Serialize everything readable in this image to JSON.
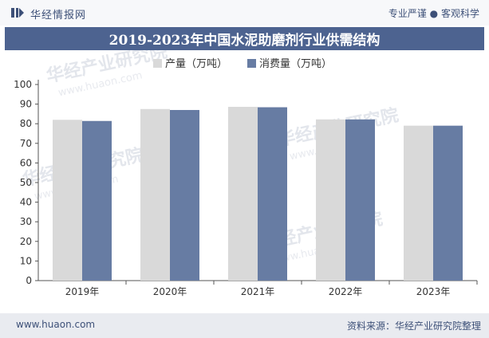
{
  "header": {
    "brand": "华经情报网",
    "tagline_left": "专业严谨",
    "tagline_sep": "●",
    "tagline_right": "客观科学"
  },
  "footer": {
    "site": "www.huaon.com",
    "source": "资料来源：华经产业研究院整理"
  },
  "watermark": {
    "text": "华经产业研究院",
    "url": "www.huaon.com"
  },
  "colors": {
    "production": "#d9d9d9",
    "consumption": "#677ca3",
    "title_bg": "#4d6390",
    "text_accent": "#3d5078"
  },
  "chart_data": {
    "type": "bar",
    "title": "2019-2023年中国水泥助磨剂行业供需结构",
    "categories": [
      "2019年",
      "2020年",
      "2021年",
      "2022年",
      "2023年"
    ],
    "series": [
      {
        "name": "产量（万吨）",
        "values": [
          82,
          87.5,
          88.6,
          82.2,
          79
        ]
      },
      {
        "name": "消费量（万吨）",
        "values": [
          81.4,
          87,
          88.4,
          82.2,
          79
        ]
      }
    ],
    "ylim": [
      0,
      100
    ],
    "yticks": [
      0,
      10,
      20,
      30,
      40,
      50,
      60,
      70,
      80,
      90,
      100
    ],
    "grid": false,
    "legend_position": "top-center"
  }
}
